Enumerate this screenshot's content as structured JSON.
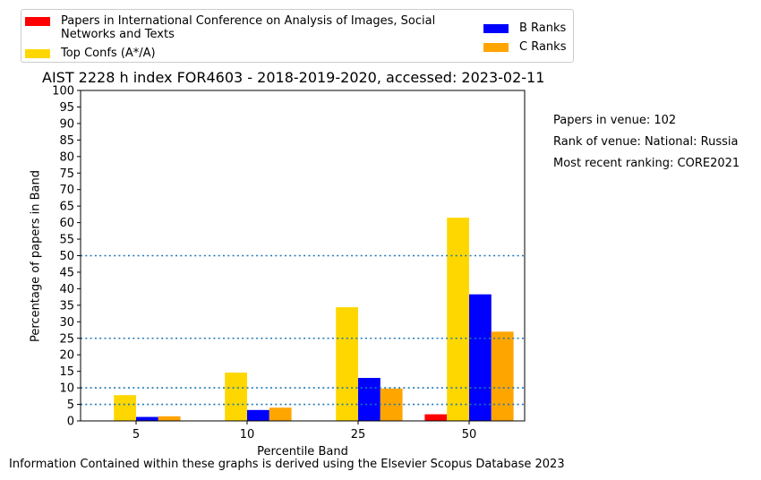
{
  "chart_data": {
    "type": "bar",
    "title": "AIST 2228 h index FOR4603 - 2018-2019-2020, accessed: 2023-02-11",
    "xlabel": "Percentile Band",
    "ylabel": "Percentage of papers in Band",
    "categories": [
      "5",
      "10",
      "25",
      "50"
    ],
    "ylim": [
      0,
      100
    ],
    "yticks": [
      "0",
      "5",
      "10",
      "15",
      "20",
      "25",
      "30",
      "35",
      "40",
      "45",
      "50",
      "55",
      "60",
      "65",
      "70",
      "75",
      "80",
      "85",
      "90",
      "95",
      "100"
    ],
    "reference_lines": [
      5,
      10,
      25,
      50
    ],
    "series": [
      {
        "name": "Papers in International Conference on Analysis of Images, Social Networks and Texts",
        "color": "#ff0000",
        "values": [
          0,
          0,
          0,
          2.0
        ]
      },
      {
        "name": "Top Confs (A*/A)",
        "color": "#ffd700",
        "values": [
          7.8,
          14.6,
          34.4,
          61.5
        ]
      },
      {
        "name": "B Ranks",
        "color": "#0000ff",
        "values": [
          1.2,
          3.3,
          13.0,
          38.3
        ]
      },
      {
        "name": "C Ranks",
        "color": "#ffa500",
        "values": [
          1.4,
          4.0,
          9.8,
          27.0
        ]
      }
    ],
    "legend_position": "top"
  },
  "legend": {
    "red_label": "Papers in International Conference on Analysis of Images, Social Networks and Texts",
    "gold_label": "Top Confs (A*/A)",
    "blue_label": "B Ranks",
    "orange_label": "C Ranks"
  },
  "side_info": {
    "papers": "Papers in venue: 102",
    "rank": "Rank of venue: National: Russia",
    "recent": "Most recent ranking: CORE2021"
  },
  "footer": "Information Contained within these graphs is derived using the Elsevier Scopus Database 2023",
  "colors": {
    "refline": "#1f77b4"
  }
}
